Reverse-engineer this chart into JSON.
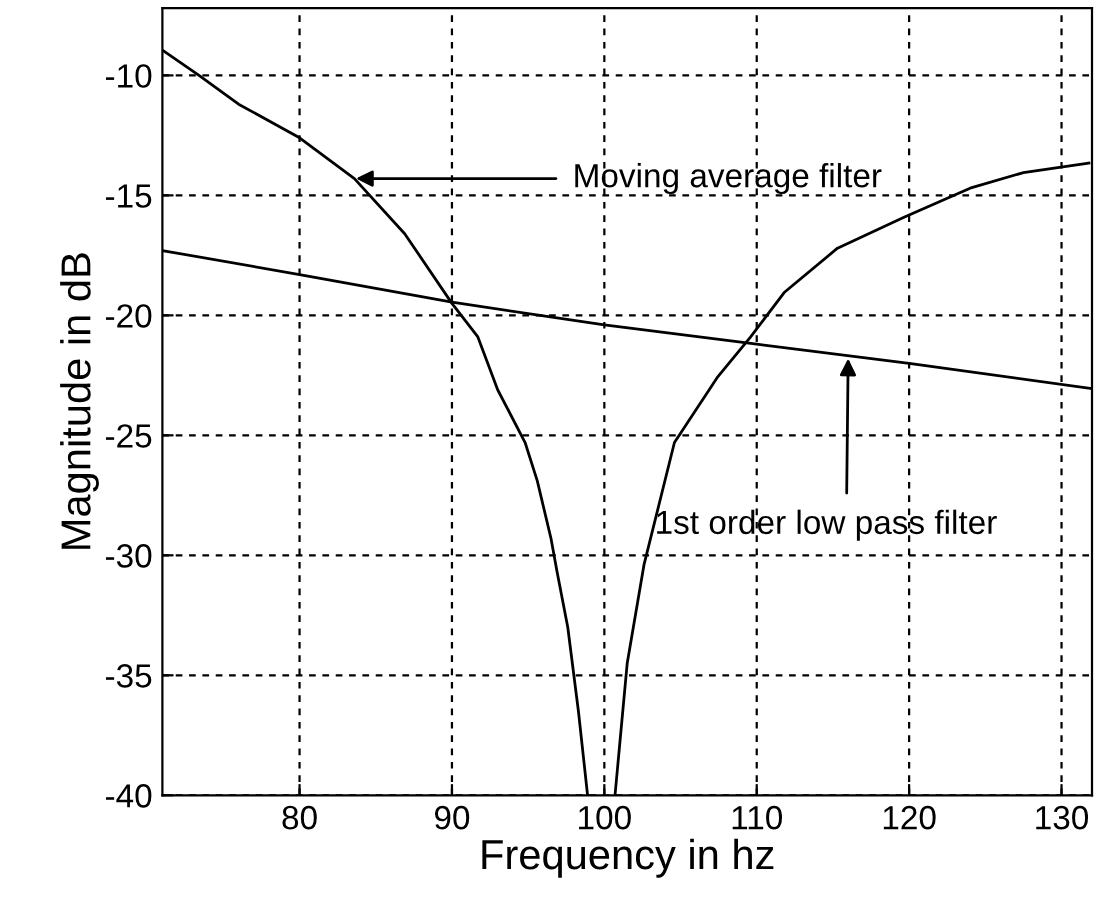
{
  "chart_data": {
    "type": "line",
    "xlabel": "Frequency in hz",
    "ylabel": "Magnitude in dB",
    "xlim": [
      71,
      132
    ],
    "ylim": [
      -40,
      -7.2
    ],
    "xticks": [
      80,
      90,
      100,
      110,
      120,
      130
    ],
    "yticks": [
      -40,
      -35,
      -30,
      -25,
      -20,
      -15,
      -10
    ],
    "grid": true,
    "marker": "none",
    "line_style": "solid",
    "series": [
      {
        "color": "#000000",
        "x": [
          71,
          73.4,
          76,
          80,
          83.6,
          86.9,
          90,
          91.7,
          93,
          94.8,
          95.6,
          96.5,
          96.9,
          97.6,
          98.3,
          98.9,
          100,
          100.7,
          101.5,
          102.6,
          104.6,
          107.4,
          109.6,
          111.8,
          115.3,
          119.7,
          124,
          127.5,
          131.8
        ],
        "values": [
          -8.95,
          -10,
          -11.2,
          -12.6,
          -14.3,
          -16.6,
          -19.5,
          -20.9,
          -23.1,
          -25.3,
          -26.9,
          -29.3,
          -30.7,
          -33,
          -36.5,
          -40,
          null,
          -40,
          -34.5,
          -30.4,
          -25.3,
          -22.6,
          -20.9,
          -19.05,
          -17.2,
          -15.9,
          -14.7,
          -14.05,
          -13.65
        ]
      },
      {
        "color": "#000000",
        "x": [
          71,
          80,
          90,
          100,
          110,
          120,
          132
        ],
        "values": [
          -17.3,
          -18.3,
          -19.45,
          -20.4,
          -21.2,
          -22.0,
          -23.05
        ]
      }
    ],
    "annotations": [
      {
        "text": "Moving average filter",
        "x": 83.7,
        "y": -14.3
      },
      {
        "text": "1st order low pass filter",
        "x": 116,
        "y": -21.8
      }
    ]
  }
}
